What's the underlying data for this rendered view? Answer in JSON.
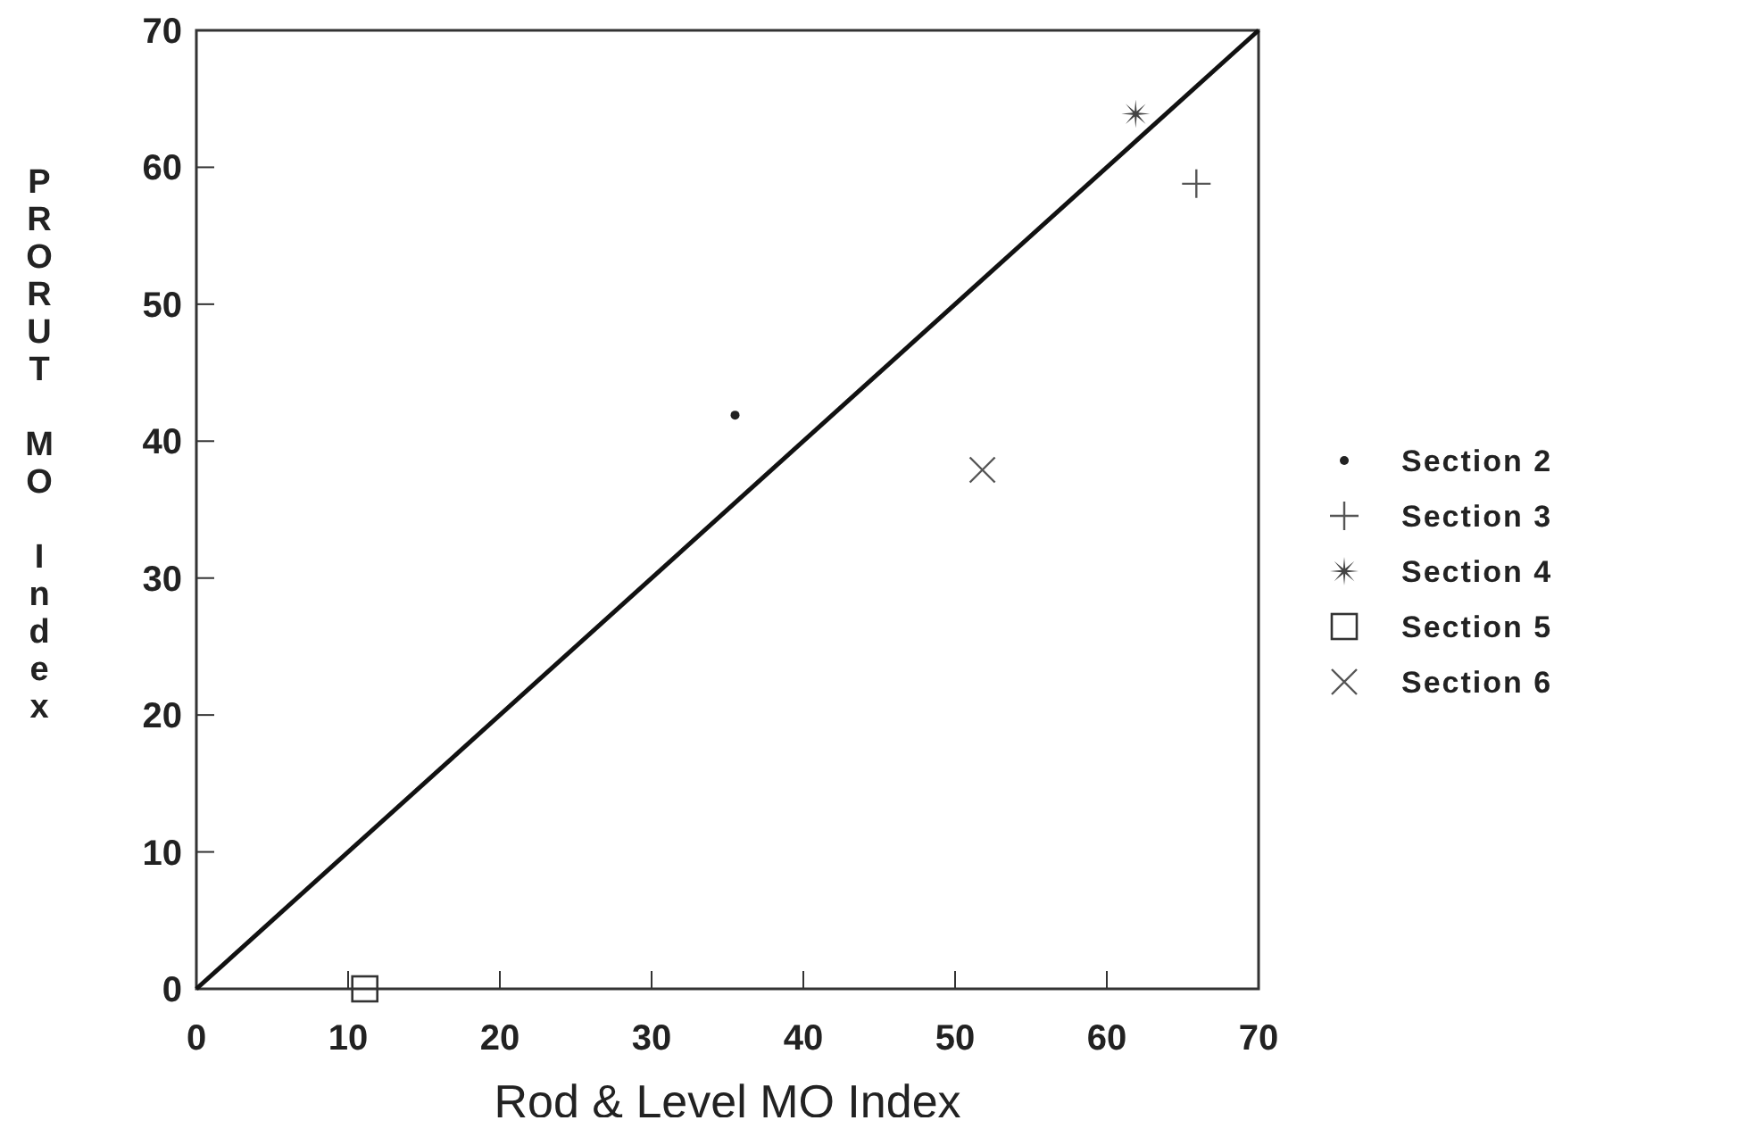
{
  "chart_data": {
    "type": "scatter",
    "xlabel": "Rod & Level MO Index",
    "ylabel": "PRORUT MO Index",
    "xlim": [
      0,
      70
    ],
    "ylim": [
      0,
      70
    ],
    "xticks": [
      0,
      10,
      20,
      30,
      40,
      50,
      60,
      70
    ],
    "yticks": [
      0,
      10,
      20,
      30,
      40,
      50,
      60,
      70
    ],
    "grid": false,
    "legend": "right",
    "series": [
      {
        "name": "Section 2",
        "color": "#222222",
        "marker": "circle",
        "x": [
          35.5
        ],
        "values": [
          41.9
        ]
      },
      {
        "name": "Section 3",
        "color": "#555555",
        "marker": "cross",
        "x": [
          65.9
        ],
        "values": [
          58.8
        ]
      },
      {
        "name": "Section 4",
        "color": "#444444",
        "marker": "star",
        "x": [
          61.9
        ],
        "values": [
          63.9
        ]
      },
      {
        "name": "Section 5",
        "color": "#333333",
        "marker": "square",
        "x": [
          11.1
        ],
        "values": [
          0
        ]
      },
      {
        "name": "Section 6",
        "color": "#555555",
        "marker": "x",
        "x": [
          51.8
        ],
        "values": [
          37.9
        ]
      },
      {
        "type": "line",
        "color": "#111111",
        "line_style": "solid",
        "x": [
          0,
          70
        ],
        "values": [
          0,
          70
        ]
      }
    ]
  }
}
